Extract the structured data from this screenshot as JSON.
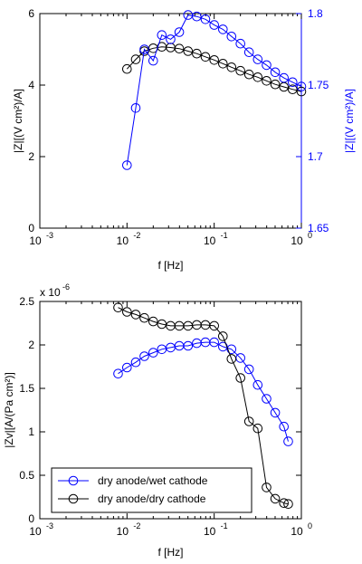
{
  "chart_data": [
    {
      "type": "line",
      "x_scale": "log",
      "xlim": [
        0.001,
        1
      ],
      "x_tick_labels": [
        "10",
        "10",
        "10",
        "10"
      ],
      "x_tick_exponents": [
        "-3",
        "-2",
        "-1",
        "0"
      ],
      "xlabel": "f [Hz]",
      "ylabel_left": "|Z|[(V cm²)/A]",
      "ylabel_right": "|Z|[(V cm²)/A]",
      "ylim_left": [
        0,
        6
      ],
      "ylim_right": [
        1.65,
        1.8
      ],
      "y_ticks_left": [
        "0",
        "2",
        "4",
        "6"
      ],
      "y_ticks_right": [
        "1.65",
        "1.7",
        "1.75",
        "1.8"
      ],
      "right_axis_color": "#0000ff",
      "grid": false,
      "series": [
        {
          "axis": "left",
          "color": "#000000",
          "x": [
            0.01,
            0.0126,
            0.0158,
            0.02,
            0.0251,
            0.0316,
            0.0398,
            0.0501,
            0.0631,
            0.0794,
            0.1,
            0.126,
            0.158,
            0.2,
            0.251,
            0.316,
            0.398,
            0.501,
            0.631,
            0.794,
            1.0
          ],
          "values": [
            4.45,
            4.72,
            4.95,
            5.03,
            5.07,
            5.05,
            5.02,
            4.95,
            4.88,
            4.79,
            4.7,
            4.6,
            4.5,
            4.4,
            4.3,
            4.22,
            4.12,
            4.02,
            3.95,
            3.88,
            3.82
          ]
        },
        {
          "axis": "right",
          "color": "#0000ff",
          "x": [
            0.01,
            0.0126,
            0.0158,
            0.02,
            0.0251,
            0.0316,
            0.0398,
            0.0501,
            0.0631,
            0.0794,
            0.1,
            0.126,
            0.158,
            0.2,
            0.251,
            0.316,
            0.398,
            0.501,
            0.631,
            0.794,
            1.0
          ],
          "values": [
            1.694,
            1.734,
            1.775,
            1.767,
            1.785,
            1.782,
            1.787,
            1.799,
            1.798,
            1.796,
            1.792,
            1.789,
            1.784,
            1.779,
            1.773,
            1.768,
            1.764,
            1.759,
            1.755,
            1.752,
            1.749
          ]
        }
      ]
    },
    {
      "type": "line",
      "x_scale": "log",
      "xlim": [
        0.001,
        1
      ],
      "x_tick_labels": [
        "10",
        "10",
        "10",
        "10"
      ],
      "x_tick_exponents": [
        "-3",
        "-2",
        "-1",
        "0"
      ],
      "xlabel": "f [Hz]",
      "ylabel": "|Zv|[A/(Pa cm²)]",
      "ylim": [
        0,
        2.5e-06
      ],
      "y_ticks": [
        "0",
        "0.5",
        "1",
        "1.5",
        "2",
        "2.5"
      ],
      "y_multiplier": "x 10",
      "y_multiplier_exponent": "-6",
      "grid": false,
      "legend_position": "lower-left",
      "series": [
        {
          "name": "dry anode/wet cathode",
          "color": "#0000ff",
          "x": [
            0.0079,
            0.01,
            0.0126,
            0.0158,
            0.02,
            0.0251,
            0.0316,
            0.0398,
            0.0501,
            0.0631,
            0.0794,
            0.1,
            0.126,
            0.158,
            0.2,
            0.251,
            0.316,
            0.398,
            0.501,
            0.631,
            0.707
          ],
          "values": [
            1.67e-06,
            1.74e-06,
            1.8e-06,
            1.87e-06,
            1.91e-06,
            1.95e-06,
            1.97e-06,
            1.99e-06,
            1.99e-06,
            2.02e-06,
            2.03e-06,
            2.03e-06,
            1.98e-06,
            1.95e-06,
            1.85e-06,
            1.72e-06,
            1.54e-06,
            1.38e-06,
            1.22e-06,
            1.06e-06,
            8.9e-07
          ]
        },
        {
          "name": "dry anode/dry cathode",
          "color": "#000000",
          "x": [
            0.0079,
            0.01,
            0.0126,
            0.0158,
            0.02,
            0.0251,
            0.0316,
            0.0398,
            0.0501,
            0.0631,
            0.0794,
            0.1,
            0.126,
            0.158,
            0.2,
            0.251,
            0.316,
            0.398,
            0.501,
            0.631,
            0.707
          ],
          "values": [
            2.43e-06,
            2.38e-06,
            2.35e-06,
            2.31e-06,
            2.27e-06,
            2.24e-06,
            2.22e-06,
            2.22e-06,
            2.22e-06,
            2.23e-06,
            2.23e-06,
            2.22e-06,
            2.1e-06,
            1.84e-06,
            1.62e-06,
            1.12e-06,
            1.04e-06,
            3.6e-07,
            2.3e-07,
            1.8e-07,
            1.7e-07
          ]
        }
      ]
    }
  ]
}
